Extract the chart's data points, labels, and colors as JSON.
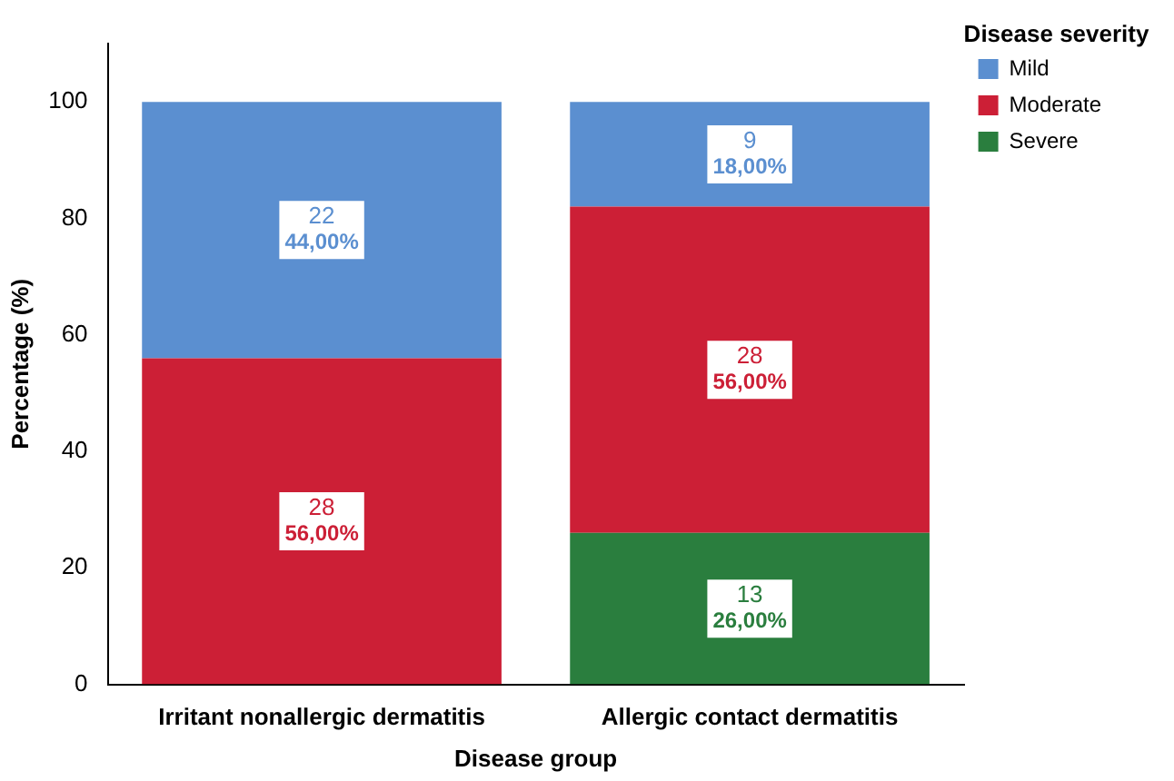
{
  "chart_data": {
    "type": "bar",
    "stacked": true,
    "xlabel": "Disease group",
    "ylabel": "Percentage (%)",
    "legend_title": "Disease severity",
    "legend": "top right",
    "grid": false,
    "categories": [
      "Irritant nonallergic dermatitis",
      "Allergic contact dermatitis"
    ],
    "ylim": [
      0,
      110
    ],
    "yticks": [
      0,
      20,
      40,
      60,
      80,
      100
    ],
    "series": [
      {
        "name": "Severe",
        "color": "#2a7e3e",
        "values": [
          0,
          26
        ],
        "value_labels": [
          null,
          "13\n26,00%"
        ]
      },
      {
        "name": "Moderate",
        "color": "#cc1f36",
        "values": [
          56,
          56
        ],
        "value_labels": [
          "28\n56,00%",
          "28\n56,00%"
        ]
      },
      {
        "name": "Mild",
        "color": "#5b8fd0",
        "values": [
          44,
          18
        ],
        "value_labels": [
          "22\n44,00%",
          "9\n18,00%"
        ]
      }
    ]
  }
}
